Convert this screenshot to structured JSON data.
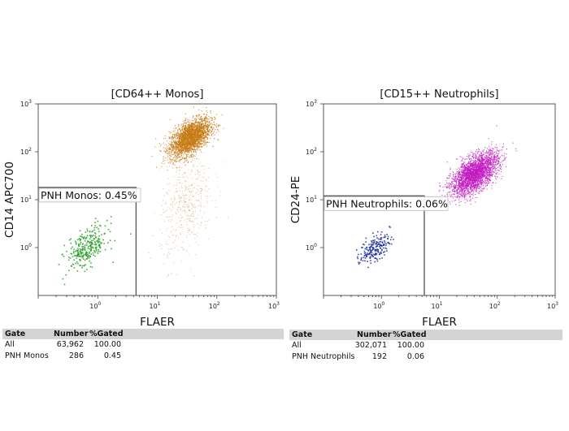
{
  "chart_data": [
    {
      "type": "scatter",
      "title": "[CD64++ Monos]",
      "xlabel": "FLAER",
      "ylabel": "CD14 APC700",
      "xscale": "log",
      "yscale": "log",
      "xlim": [
        0.1,
        1000
      ],
      "ylim": [
        0.1,
        1000
      ],
      "xticks": [
        "10^0",
        "10^1",
        "10^2",
        "10^3"
      ],
      "yticks": [
        "10^0",
        "10^1",
        "10^2",
        "10^3"
      ],
      "grid": false,
      "gate": {
        "label": "PNH Monos: 0.45%",
        "x_max": 4.4,
        "y_max": 18
      },
      "populations": [
        {
          "name": "All",
          "color": "#c57a14",
          "center": [
            35,
            200
          ],
          "spread_decades": [
            0.17,
            0.2
          ]
        },
        {
          "name": "All",
          "color": "#d2a060",
          "center": [
            30,
            8
          ],
          "spread_decades": [
            0.22,
            0.55
          ]
        },
        {
          "name": "PNH Monos",
          "color": "#22a022",
          "center": [
            0.65,
            1.0
          ],
          "spread_decades": [
            0.17,
            0.22
          ]
        }
      ],
      "table": {
        "headers": [
          "Gate",
          "Number",
          "%Gated"
        ],
        "rows": [
          [
            "All",
            "63,962",
            "100.00"
          ],
          [
            "PNH Monos",
            "286",
            "0.45"
          ]
        ]
      }
    },
    {
      "type": "scatter",
      "title": "[CD15++ Neutrophils]",
      "xlabel": "FLAER",
      "ylabel": "CD24-PE",
      "xscale": "log",
      "yscale": "log",
      "xlim": [
        0.1,
        1000
      ],
      "ylim": [
        0.1,
        1000
      ],
      "xticks": [
        "10^0",
        "10^1",
        "10^2",
        "10^3"
      ],
      "yticks": [
        "10^0",
        "10^1",
        "10^2",
        "10^3"
      ],
      "grid": false,
      "gate": {
        "label": "PNH Neutrophils: 0.06%",
        "x_max": 5.5,
        "y_max": 12
      },
      "populations": [
        {
          "name": "All",
          "color": "#c21cc2",
          "center": [
            40,
            35
          ],
          "spread_decades": [
            0.2,
            0.22
          ]
        },
        {
          "name": "PNH Neutrophils",
          "color": "#1c2c9c",
          "center": [
            0.75,
            1.0
          ],
          "spread_decades": [
            0.13,
            0.15
          ]
        }
      ],
      "table": {
        "headers": [
          "Gate",
          "Number",
          "%Gated"
        ],
        "rows": [
          [
            "All",
            "302,071",
            "100.00"
          ],
          [
            "PNH Neutrophils",
            "192",
            "0.06"
          ]
        ]
      }
    }
  ]
}
